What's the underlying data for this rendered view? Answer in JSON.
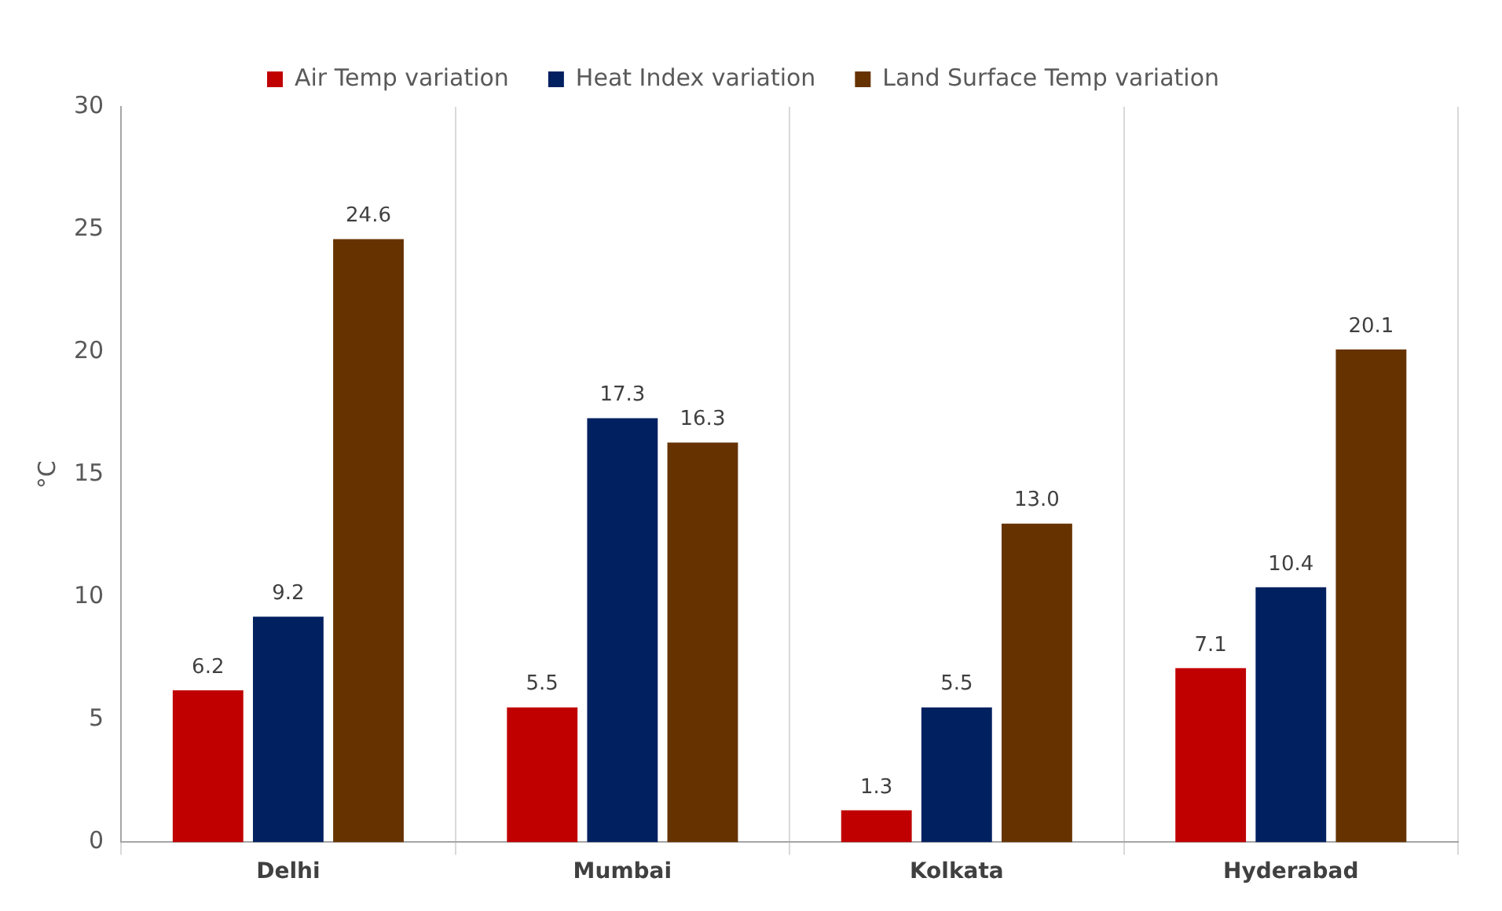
{
  "chart_data": {
    "type": "bar",
    "ylabel": "°C",
    "categories": [
      "Delhi",
      "Mumbai",
      "Kolkata",
      "Hyderabad"
    ],
    "series": [
      {
        "name": "Air Temp variation",
        "color": "#c00000",
        "values": [
          6.2,
          5.5,
          1.3,
          7.1
        ],
        "value_labels": [
          "6.2",
          "5.5",
          "1.3",
          "7.1"
        ]
      },
      {
        "name": "Heat Index variation",
        "color": "#002060",
        "values": [
          9.2,
          17.3,
          5.5,
          10.4
        ],
        "value_labels": [
          "9.2",
          "17.3",
          "5.5",
          "10.4"
        ]
      },
      {
        "name": "Land Surface Temp variation",
        "color": "#663300",
        "values": [
          24.6,
          16.3,
          13.0,
          20.1
        ],
        "value_labels": [
          "24.6",
          "16.3",
          "13.0",
          "20.1"
        ]
      }
    ],
    "ylim": [
      0,
      30
    ],
    "yticks": [
      0,
      5,
      10,
      15,
      20,
      25,
      30
    ],
    "grid": "x",
    "legend": "top"
  }
}
